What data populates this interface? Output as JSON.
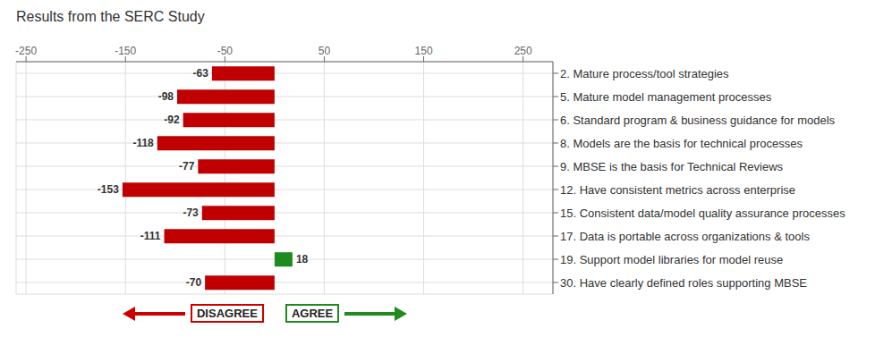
{
  "chart_data": {
    "type": "bar",
    "title": "Results from the SERC Study",
    "orientation": "horizontal",
    "categories": [
      "2. Mature process/tool strategies",
      "5. Mature model management processes",
      "6. Standard program & business guidance for models",
      "8. Models are the basis for technical processes",
      "9. MBSE is the basis for Technical Reviews",
      "12. Have consistent metrics across enterprise",
      "15. Consistent data/model quality assurance processes",
      "17. Data is portable across organizations & tools",
      "19. Support model libraries for model reuse",
      "30. Have clearly defined roles supporting MBSE"
    ],
    "values": [
      -63,
      -98,
      -92,
      -118,
      -77,
      -153,
      -73,
      -111,
      18,
      -70
    ],
    "colors": [
      "#c00000",
      "#c00000",
      "#c00000",
      "#c00000",
      "#c00000",
      "#c00000",
      "#c00000",
      "#c00000",
      "#1e8b1e",
      "#c00000"
    ],
    "xlim": [
      -260,
      280
    ],
    "xticks": [
      -250,
      -150,
      -50,
      50,
      150,
      250
    ],
    "grid": true,
    "data_labels": true,
    "annotations": [
      {
        "text": "DISAGREE",
        "color": "#cc0000"
      },
      {
        "text": "AGREE",
        "color": "#1e8b1e"
      }
    ]
  }
}
